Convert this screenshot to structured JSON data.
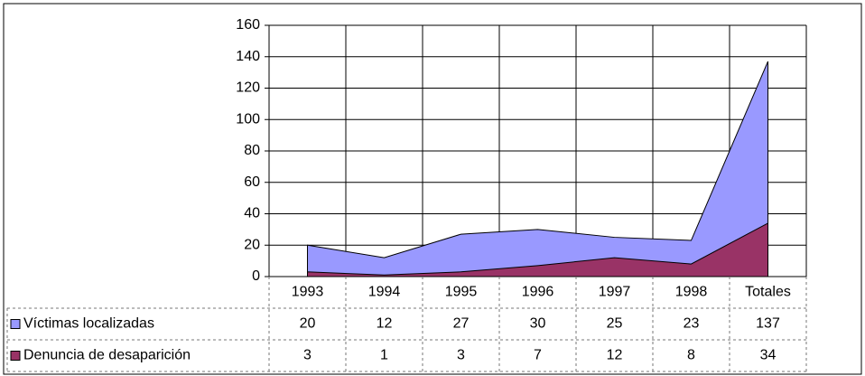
{
  "chart_data": {
    "type": "area",
    "categories": [
      "1993",
      "1994",
      "1995",
      "1996",
      "1997",
      "1998",
      "Totales"
    ],
    "series": [
      {
        "name": "Víctimas localizadas",
        "color": "#9999ff",
        "values": [
          20,
          12,
          27,
          30,
          25,
          23,
          137
        ]
      },
      {
        "name": "Denuncia de desaparición",
        "color": "#993366",
        "values": [
          3,
          1,
          3,
          7,
          12,
          8,
          34
        ]
      }
    ],
    "ylim": [
      0,
      160
    ],
    "yticks": [
      0,
      20,
      40,
      60,
      80,
      100,
      120,
      140,
      160
    ],
    "grid": true,
    "legend": "table"
  }
}
